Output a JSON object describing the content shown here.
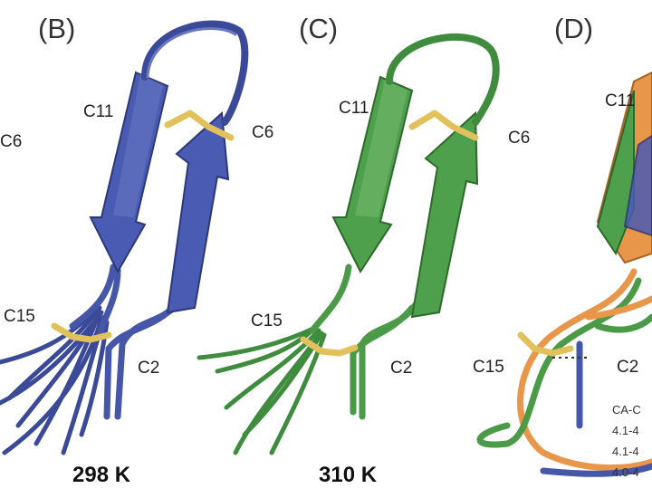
{
  "panels": {
    "b": {
      "letter": "(B)",
      "temperature": "298 K",
      "color": "#4656a8"
    },
    "c": {
      "letter": "(C)",
      "temperature": "310 K",
      "color": "#4a9a48"
    },
    "d": {
      "letter": "(D)",
      "colors": [
        "#e8964a",
        "#4a9a48",
        "#4656a8"
      ]
    }
  },
  "residues": {
    "c6": "C6",
    "c11": "C11",
    "c15": "C15",
    "c2": "C2"
  },
  "disulfide_color": "#e2c15c",
  "distance_box": {
    "header": "CA-C",
    "rows": [
      "4.1-4",
      "4.1-4",
      "4.0-4"
    ]
  }
}
